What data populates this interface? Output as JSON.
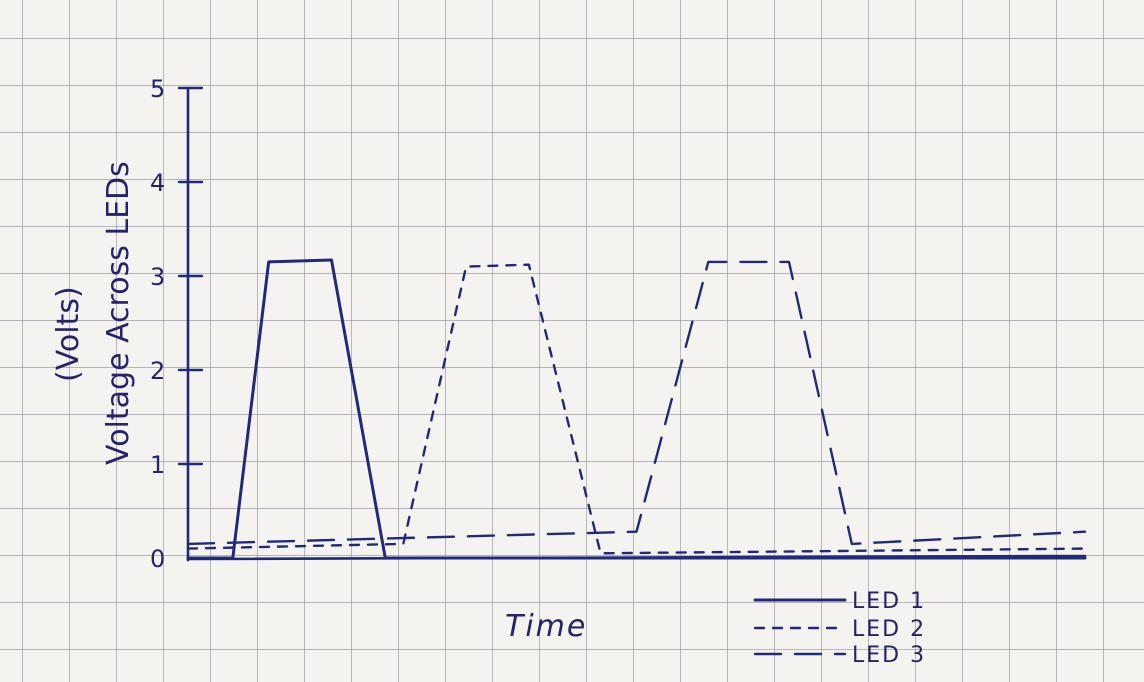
{
  "chart_data": {
    "type": "line",
    "title": "",
    "xlabel": "Time",
    "ylabel": "Voltage Across LEDs",
    "ylabel_unit": "(Volts)",
    "ylim": [
      0,
      5
    ],
    "yticks": [
      "0",
      "1",
      "2",
      "3",
      "4",
      "5"
    ],
    "x_ticks_labeled": false,
    "grid": true,
    "legend_position": "bottom-right",
    "series": [
      {
        "name": "LED 1",
        "style": "solid",
        "color": "#1f2a7a",
        "points": [
          [
            0,
            0
          ],
          [
            5,
            0
          ],
          [
            9,
            3.15
          ],
          [
            16,
            3.17
          ],
          [
            22,
            0
          ],
          [
            100,
            0
          ]
        ]
      },
      {
        "name": "LED 2",
        "style": "dotted-dash",
        "color": "#1f2a7a",
        "points": [
          [
            0,
            0.1
          ],
          [
            24,
            0.15
          ],
          [
            31,
            3.1
          ],
          [
            38,
            3.12
          ],
          [
            46,
            0.05
          ],
          [
            100,
            0.1
          ]
        ]
      },
      {
        "name": "LED 3",
        "style": "long-dash",
        "color": "#1f2a7a",
        "points": [
          [
            0,
            0.15
          ],
          [
            50,
            0.28
          ],
          [
            58,
            3.15
          ],
          [
            67,
            3.15
          ],
          [
            74,
            0.15
          ],
          [
            100,
            0.28
          ]
        ]
      }
    ]
  }
}
